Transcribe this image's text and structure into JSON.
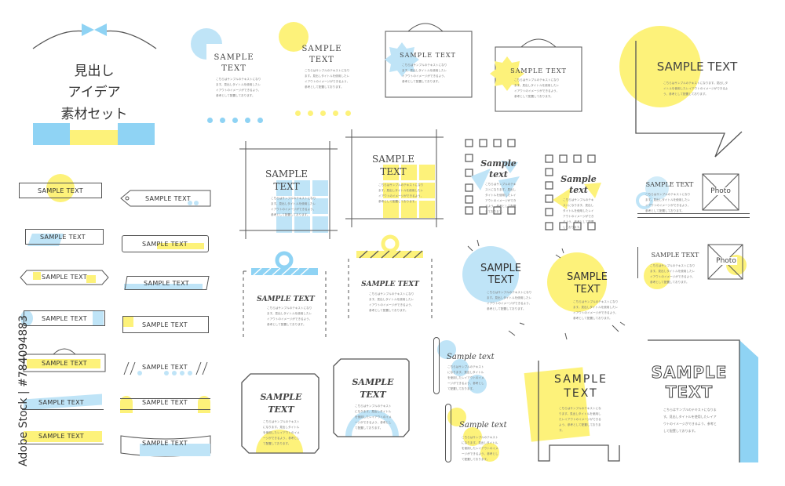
{
  "title_block": {
    "line1": "見出し",
    "line2": "アイデア",
    "line3": "素材セット"
  },
  "sample_upper": "SAMPLE TEXT",
  "sample_word1": "SAMPLE",
  "sample_word2": "TEXT",
  "sample_script_1": "Sample",
  "sample_script_2": "text",
  "sample_lower": "Sample text",
  "photo_label": "Photo",
  "body_text": "こちらはサンプルのテキストになります。見出しタイトルを使用したレイアウトのイメージができるよう、参考として配置しております。",
  "watermark": "Adobe Stock | #784094883",
  "colors": {
    "blue": "#8fd3f4",
    "light_blue": "#bfe4f7",
    "yellow": "#fdf27a",
    "line": "#555555"
  }
}
